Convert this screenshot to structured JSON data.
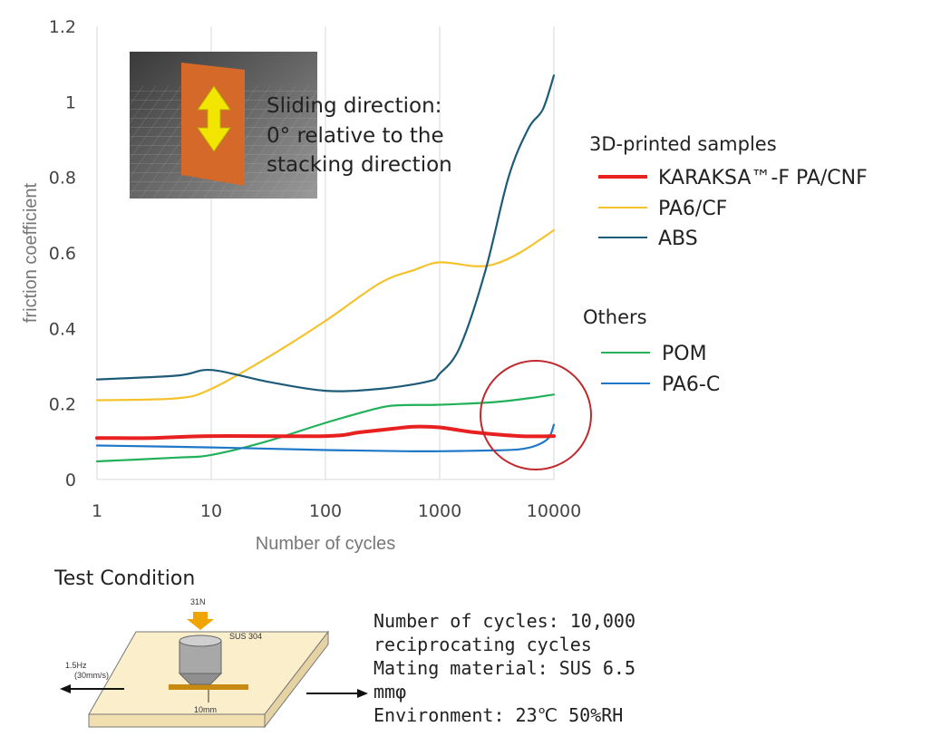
{
  "chart_data": {
    "type": "line",
    "x_scale": "log",
    "xlabel": "Number of cycles",
    "ylabel": "friction coefficient",
    "xlim": [
      1,
      10000
    ],
    "ylim": [
      0,
      1.2
    ],
    "x_ticks": [
      "1",
      "10",
      "100",
      "1000",
      "10000"
    ],
    "y_ticks": [
      "0",
      "0.2",
      "0.4",
      "0.6",
      "0.8",
      "1",
      "1.2"
    ],
    "grid": "vertical",
    "series": [
      {
        "name": "KARAKSA™-F PA/CNF",
        "group": "3D-printed samples",
        "color": "#e82020",
        "x": [
          1,
          3,
          10,
          100,
          200,
          400,
          600,
          1000,
          2000,
          5000,
          10000
        ],
        "y": [
          0.11,
          0.11,
          0.115,
          0.115,
          0.125,
          0.135,
          0.14,
          0.138,
          0.125,
          0.115,
          0.115
        ]
      },
      {
        "name": "PA6/CF",
        "group": "3D-printed samples",
        "color": "#f5c22c",
        "x": [
          1,
          5,
          10,
          30,
          100,
          300,
          600,
          1000,
          2000,
          3000,
          5000,
          10000
        ],
        "y": [
          0.21,
          0.215,
          0.24,
          0.32,
          0.42,
          0.52,
          0.555,
          0.575,
          0.565,
          0.57,
          0.6,
          0.66
        ]
      },
      {
        "name": "ABS",
        "group": "3D-printed samples",
        "color": "#1d5b79",
        "x": [
          1,
          5,
          10,
          30,
          100,
          300,
          800,
          1000,
          1500,
          2500,
          4000,
          6000,
          8000,
          10000
        ],
        "y": [
          0.265,
          0.275,
          0.29,
          0.26,
          0.235,
          0.24,
          0.26,
          0.28,
          0.35,
          0.55,
          0.8,
          0.93,
          0.98,
          1.07
        ]
      },
      {
        "name": "POM",
        "group": "Others",
        "color": "#22b05a",
        "x": [
          1,
          5,
          10,
          30,
          100,
          300,
          500,
          1000,
          3000,
          6000,
          10000
        ],
        "y": [
          0.048,
          0.058,
          0.065,
          0.1,
          0.15,
          0.19,
          0.197,
          0.198,
          0.205,
          0.215,
          0.225
        ]
      },
      {
        "name": "PA6-C",
        "group": "Others",
        "color": "#1f77c8",
        "x": [
          1,
          10,
          100,
          500,
          1000,
          3000,
          5000,
          7000,
          9000,
          10000
        ],
        "y": [
          0.09,
          0.085,
          0.078,
          0.075,
          0.075,
          0.077,
          0.08,
          0.09,
          0.11,
          0.145
        ]
      }
    ],
    "legend": {
      "groups": [
        {
          "title": "3D-printed samples",
          "items": [
            "KARAKSA™-F PA/CNF",
            "PA6/CF",
            "ABS"
          ]
        },
        {
          "title": "Others",
          "items": [
            "POM",
            "PA6-C"
          ]
        }
      ],
      "placement": "right"
    },
    "annotation": {
      "inset_lines": [
        "Sliding direction:",
        "0° relative to the",
        "stacking direction"
      ],
      "highlight": "red circle around the curves near 10000 cycles",
      "highlight_color": "#c0282d"
    }
  },
  "test_condition": {
    "title": "Test Condition",
    "lines": [
      "Number of cycles: 10,000",
      "reciprocating cycles",
      "Mating material: SUS 6.5",
      "mmφ",
      "Environment: 23℃ 50%RH"
    ],
    "diagram": {
      "load_label": "31N",
      "pin_label": "SUS 304",
      "speed_label_1": "1.5Hz",
      "speed_label_2": "(30mm/s)",
      "stroke_label": "10mm"
    }
  }
}
